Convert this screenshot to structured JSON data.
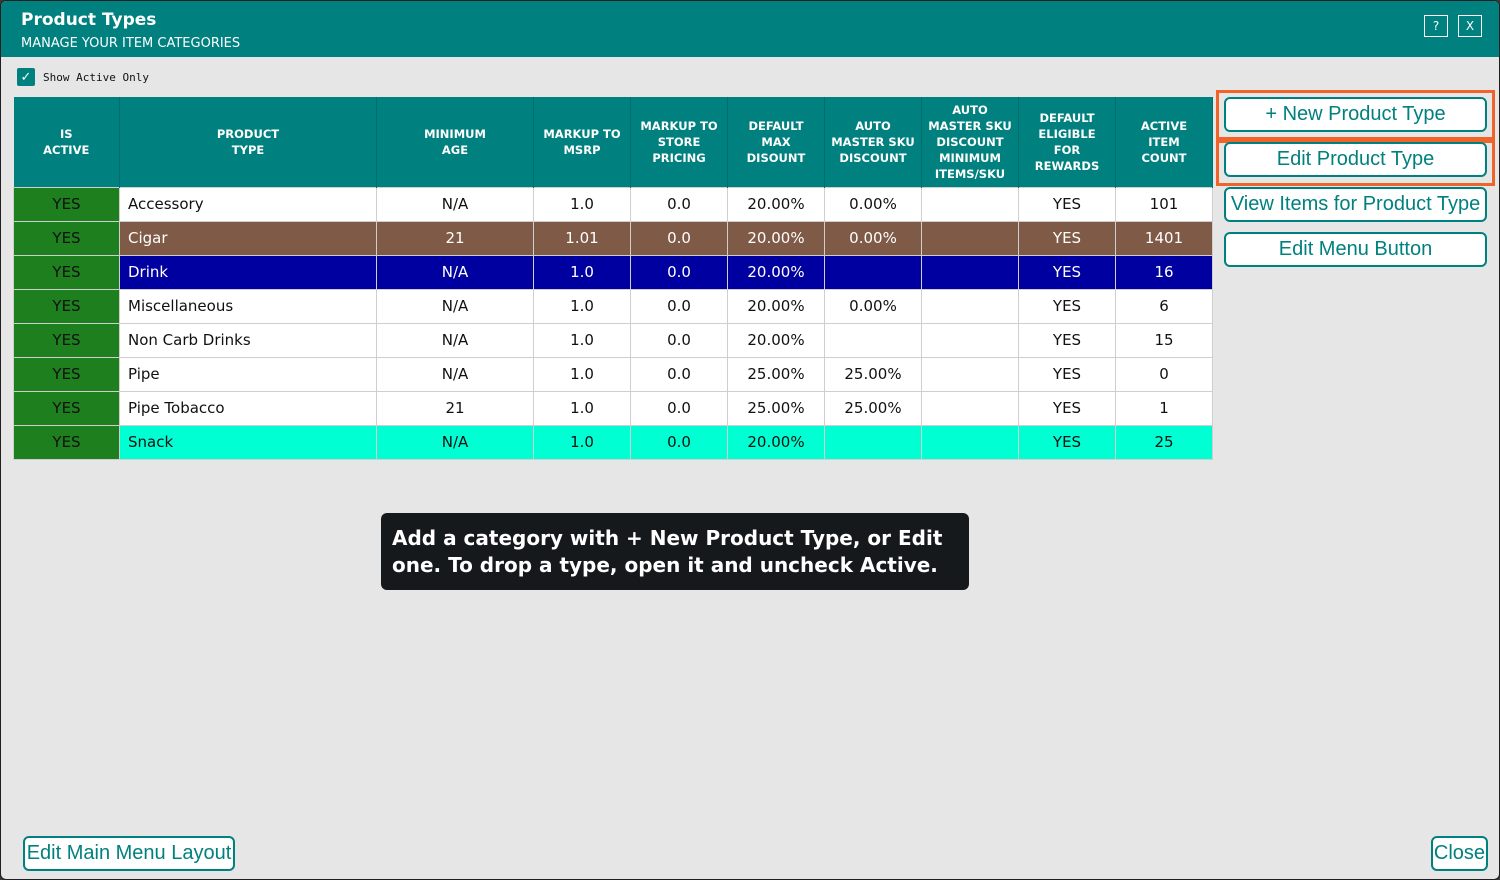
{
  "window": {
    "title": "Product Types",
    "subtitle": "MANAGE YOUR ITEM CATEGORIES",
    "help_label": "?",
    "close_label": "X"
  },
  "filter": {
    "label": "Show Active Only",
    "checked": true
  },
  "table": {
    "headers": [
      "IS\nACTIVE",
      "PRODUCT\nTYPE",
      "MINIMUM\nAGE",
      "MARKUP TO\nMSRP",
      "MARKUP TO\nSTORE\nPRICING",
      "DEFAULT\nMAX\nDISOUNT",
      "AUTO\nMASTER SKU\nDISCOUNT",
      "AUTO\nMASTER SKU\nDISCOUNT\nMINIMUM\nITEMS/SKU",
      "DEFAULT\nELIGIBLE\nFOR\nREWARDS",
      "ACTIVE\nITEM\nCOUNT"
    ],
    "rows": [
      [
        "YES",
        "Accessory",
        "N/A",
        "1.0",
        "0.0",
        "20.00%",
        "0.00%",
        "",
        "YES",
        "101"
      ],
      [
        "YES",
        "Cigar",
        "21",
        "1.01",
        "0.0",
        "20.00%",
        "0.00%",
        "",
        "YES",
        "1401"
      ],
      [
        "YES",
        "Drink",
        "N/A",
        "1.0",
        "0.0",
        "20.00%",
        "",
        "",
        "YES",
        "16"
      ],
      [
        "YES",
        "Miscellaneous",
        "N/A",
        "1.0",
        "0.0",
        "20.00%",
        "0.00%",
        "",
        "YES",
        "6"
      ],
      [
        "YES",
        "Non Carb Drinks",
        "N/A",
        "1.0",
        "0.0",
        "20.00%",
        "",
        "",
        "YES",
        "15"
      ],
      [
        "YES",
        "Pipe",
        "N/A",
        "1.0",
        "0.0",
        "25.00%",
        "25.00%",
        "",
        "YES",
        "0"
      ],
      [
        "YES",
        "Pipe Tobacco",
        "21",
        "1.0",
        "0.0",
        "25.00%",
        "25.00%",
        "",
        "YES",
        "1"
      ],
      [
        "YES",
        "Snack",
        "N/A",
        "1.0",
        "0.0",
        "20.00%",
        "",
        "",
        "YES",
        "25"
      ]
    ],
    "row_colors": {
      "active_cell": "#1e7f1e",
      "Cigar": "#7f5a46",
      "Drink": "#0000a0",
      "Snack": "#00ffd2"
    }
  },
  "side_buttons": {
    "new_type": "+ New Product Type",
    "edit_type": "Edit Product Type",
    "view_items": "View Items for Product Type",
    "edit_menu": "Edit Menu Button"
  },
  "tooltip": {
    "text": "Add a category with + New Product Type, or Edit one. To drop a type, open it and uncheck Active."
  },
  "bottom_buttons": {
    "edit_layout": "Edit Main Menu Layout",
    "close": "Close"
  },
  "colors": {
    "accent": "#00807f",
    "highlight": "#f0642a",
    "background": "#e6e6e6"
  }
}
